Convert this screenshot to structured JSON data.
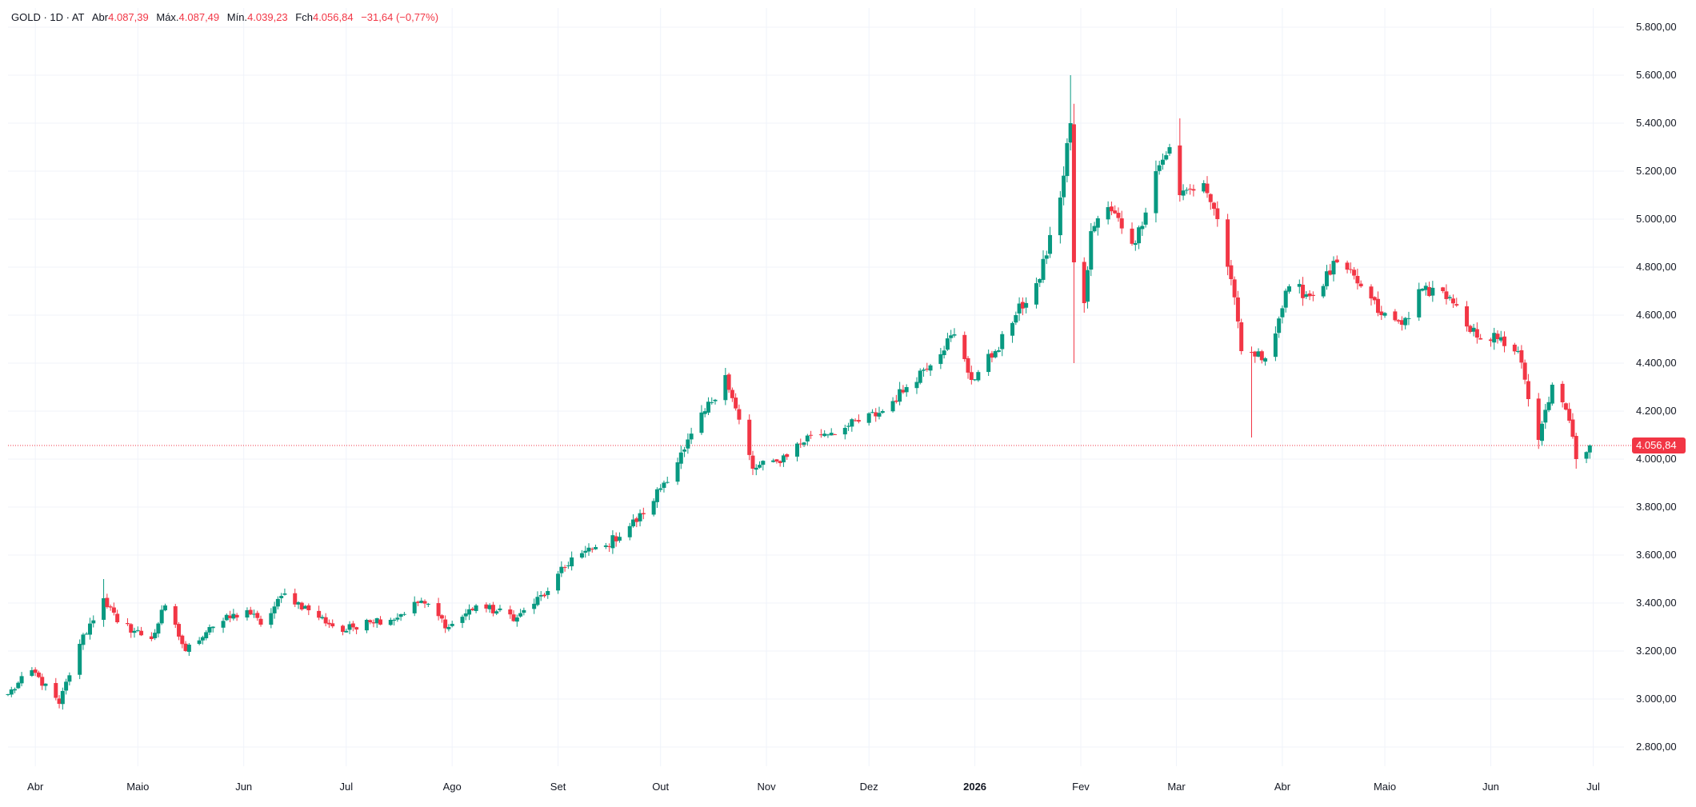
{
  "legend": {
    "symbol": "GOLD · 1D · AT",
    "open_label": "Abr",
    "open_value": "4.087,39",
    "high_label": "Máx.",
    "high_value": "4.087,49",
    "low_label": "Mín.",
    "low_value": "4.039,23",
    "close_label": "Fch",
    "close_value": "4.056,84",
    "change_value": "−31,64 (−0,77%)"
  },
  "colors": {
    "up": "#089981",
    "down": "#f23645",
    "grid": "#f0f3fa",
    "background": "#ffffff",
    "text": "#131722",
    "price_line": "#f23645"
  },
  "chart_data": {
    "type": "candlestick",
    "y_ticks": [
      2800,
      3000,
      3200,
      3400,
      3600,
      3800,
      4000,
      4200,
      4400,
      4600,
      4800,
      5000,
      5200,
      5400,
      5600,
      5800
    ],
    "y_tick_labels": [
      "2.800,00",
      "3.000,00",
      "3.200,00",
      "3.400,00",
      "3.600,00",
      "3.800,00",
      "4.000,00",
      "4.200,00",
      "4.400,00",
      "4.600,00",
      "4.800,00",
      "5.000,00",
      "5.200,00",
      "5.400,00",
      "5.600,00",
      "5.800,00"
    ],
    "ylim": [
      2720,
      5880
    ],
    "x_labels": [
      {
        "label": "Abr",
        "date": "2025-04-01"
      },
      {
        "label": "Maio",
        "date": "2025-05-01"
      },
      {
        "label": "Jun",
        "date": "2025-06-01"
      },
      {
        "label": "Jul",
        "date": "2025-07-01"
      },
      {
        "label": "Ago",
        "date": "2025-08-01"
      },
      {
        "label": "Set",
        "date": "2025-09-01"
      },
      {
        "label": "Out",
        "date": "2025-10-01"
      },
      {
        "label": "Nov",
        "date": "2025-11-01"
      },
      {
        "label": "Dez",
        "date": "2025-12-01"
      },
      {
        "label": "2026",
        "date": "2026-01-01",
        "bold": true
      },
      {
        "label": "Fev",
        "date": "2026-02-01"
      },
      {
        "label": "Mar",
        "date": "2026-03-01"
      },
      {
        "label": "Abr",
        "date": "2026-04-01"
      },
      {
        "label": "Maio",
        "date": "2026-05-01"
      },
      {
        "label": "Jun",
        "date": "2026-06-01"
      },
      {
        "label": "Jul",
        "date": "2026-07-01"
      }
    ],
    "xlim": [
      "2025-03-24",
      "2026-07-10"
    ],
    "last_price": 4056.84,
    "last_price_label": "4.056,84",
    "close_path": [
      [
        "2025-03-24",
        3020
      ],
      [
        "2025-03-31",
        3120
      ],
      [
        "2025-04-08",
        2980
      ],
      [
        "2025-04-14",
        3230
      ],
      [
        "2025-04-21",
        3420
      ],
      [
        "2025-04-25",
        3320
      ],
      [
        "2025-05-05",
        3250
      ],
      [
        "2025-05-09",
        3390
      ],
      [
        "2025-05-15",
        3200
      ],
      [
        "2025-05-22",
        3300
      ],
      [
        "2025-06-02",
        3370
      ],
      [
        "2025-06-06",
        3310
      ],
      [
        "2025-06-13",
        3440
      ],
      [
        "2025-06-20",
        3370
      ],
      [
        "2025-06-30",
        3280
      ],
      [
        "2025-07-07",
        3330
      ],
      [
        "2025-07-14",
        3330
      ],
      [
        "2025-07-23",
        3410
      ],
      [
        "2025-07-31",
        3300
      ],
      [
        "2025-08-08",
        3390
      ],
      [
        "2025-08-20",
        3340
      ],
      [
        "2025-08-29",
        3450
      ],
      [
        "2025-09-05",
        3590
      ],
      [
        "2025-09-15",
        3640
      ],
      [
        "2025-09-26",
        3770
      ],
      [
        "2025-10-08",
        4040
      ],
      [
        "2025-10-20",
        4350
      ],
      [
        "2025-10-28",
        3960
      ],
      [
        "2025-11-04",
        3990
      ],
      [
        "2025-11-14",
        4100
      ],
      [
        "2025-11-24",
        4130
      ],
      [
        "2025-12-05",
        4200
      ],
      [
        "2025-12-12",
        4300
      ],
      [
        "2025-12-26",
        4520
      ],
      [
        "2025-12-31",
        4330
      ],
      [
        "2026-01-07",
        4450
      ],
      [
        "2026-01-13",
        4600
      ],
      [
        "2026-01-20",
        4750
      ],
      [
        "2026-01-26",
        5090
      ],
      [
        "2026-01-29",
        5400
      ],
      [
        "2026-01-30",
        4820
      ],
      [
        "2026-02-02",
        4650
      ],
      [
        "2026-02-04",
        4950
      ],
      [
        "2026-02-09",
        5050
      ],
      [
        "2026-02-17",
        4900
      ],
      [
        "2026-02-23",
        5200
      ],
      [
        "2026-02-27",
        5300
      ],
      [
        "2026-03-02",
        5100
      ],
      [
        "2026-03-09",
        5150
      ],
      [
        "2026-03-13",
        5000
      ],
      [
        "2026-03-17",
        4750
      ],
      [
        "2026-03-20",
        4450
      ],
      [
        "2026-03-27",
        4420
      ],
      [
        "2026-04-03",
        4720
      ],
      [
        "2026-04-10",
        4680
      ],
      [
        "2026-04-17",
        4820
      ],
      [
        "2026-04-24",
        4720
      ],
      [
        "2026-04-30",
        4600
      ],
      [
        "2026-05-06",
        4560
      ],
      [
        "2026-05-12",
        4710
      ],
      [
        "2026-05-18",
        4700
      ],
      [
        "2026-05-26",
        4530
      ],
      [
        "2026-06-03",
        4500
      ],
      [
        "2026-06-09",
        4450
      ],
      [
        "2026-06-12",
        4250
      ],
      [
        "2026-06-15",
        4080
      ],
      [
        "2026-06-19",
        4310
      ],
      [
        "2026-06-24",
        4160
      ],
      [
        "2026-06-26",
        4000
      ],
      [
        "2026-06-30",
        4056.84
      ]
    ],
    "wick_spikes": [
      {
        "date": "2025-04-21",
        "high": 3500
      },
      {
        "date": "2025-10-20",
        "high": 4380
      },
      {
        "date": "2026-01-29",
        "high": 5600
      },
      {
        "date": "2026-01-30",
        "low": 4400
      },
      {
        "date": "2026-03-02",
        "high": 5420
      },
      {
        "date": "2026-03-23",
        "low": 4090
      },
      {
        "date": "2026-06-26",
        "low": 3960
      }
    ]
  }
}
